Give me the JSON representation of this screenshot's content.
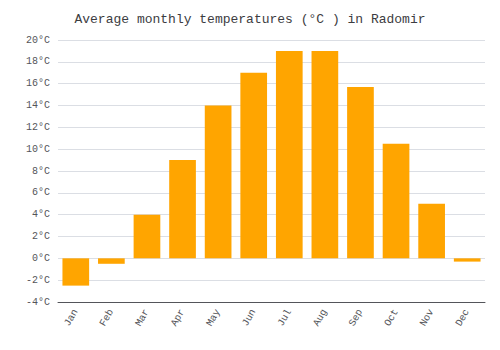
{
  "chart_data": {
    "type": "bar",
    "title": "Average monthly temperatures (°C ) in Radomir",
    "categories": [
      "Jan",
      "Feb",
      "Mar",
      "Apr",
      "May",
      "Jun",
      "Jul",
      "Aug",
      "Sep",
      "Oct",
      "Nov",
      "Dec"
    ],
    "values": [
      -2.5,
      -0.5,
      4.0,
      9.0,
      14.0,
      17.0,
      19.0,
      19.0,
      15.7,
      10.5,
      5.0,
      -0.3
    ],
    "color": "#FFA500",
    "ylim": [
      -4,
      20
    ],
    "yticks": [
      {
        "value": -4,
        "label": "-4°C"
      },
      {
        "value": -2,
        "label": "-2°C"
      },
      {
        "value": 0,
        "label": "0°C"
      },
      {
        "value": 2,
        "label": "2°C"
      },
      {
        "value": 4,
        "label": "4°C"
      },
      {
        "value": 6,
        "label": "6°C"
      },
      {
        "value": 8,
        "label": "8°C"
      },
      {
        "value": 10,
        "label": "10°C"
      },
      {
        "value": 12,
        "label": "12°C"
      },
      {
        "value": 14,
        "label": "14°C"
      },
      {
        "value": 16,
        "label": "16°C"
      },
      {
        "value": 18,
        "label": "18°C"
      },
      {
        "value": 20,
        "label": "20°C"
      }
    ],
    "grid": true
  }
}
